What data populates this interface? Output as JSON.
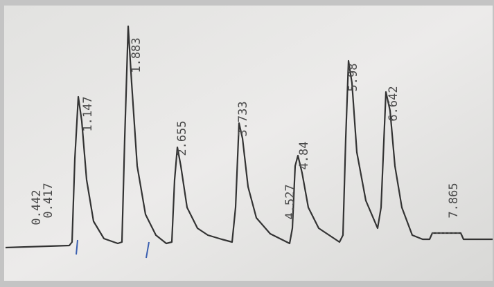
{
  "labels": [
    "0.442",
    "0.417",
    "1.147",
    "1.883",
    "2.655",
    "3.733",
    "4.527",
    "4.84",
    "5.98",
    "6.642",
    "7.865"
  ]
}
